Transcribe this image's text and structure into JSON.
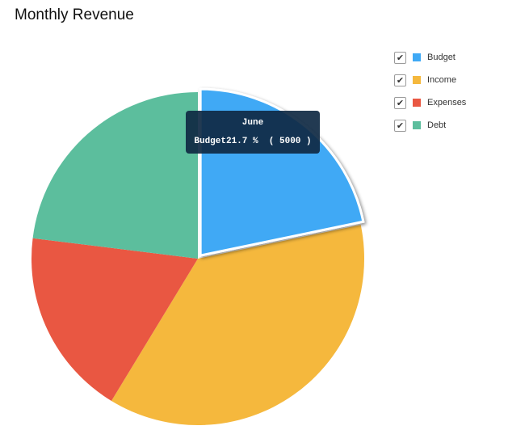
{
  "title": "Monthly Revenue",
  "chart_data": {
    "type": "pie",
    "title": "Monthly Revenue",
    "slices": [
      {
        "name": "Budget",
        "value": 5000,
        "percent": 21.7,
        "color": "#3FA9F5",
        "highlighted": true
      },
      {
        "name": "Income",
        "value": 8500,
        "percent": 37.0,
        "color": "#F5B83D"
      },
      {
        "name": "Expenses",
        "value": 4200,
        "percent": 18.3,
        "color": "#E95742"
      },
      {
        "name": "Debt",
        "value": 5300,
        "percent": 23.0,
        "color": "#5CBE9D"
      }
    ],
    "legend_position": "top-right",
    "tooltip": {
      "title": "June",
      "series": "Budget",
      "percent_text": "21.7 %",
      "value_text": "( 5000 )"
    }
  },
  "legend": {
    "items": [
      {
        "label": "Budget",
        "color": "#3FA9F5",
        "checked": true
      },
      {
        "label": "Income",
        "color": "#F5B83D",
        "checked": true
      },
      {
        "label": "Expenses",
        "color": "#E95742",
        "checked": true
      },
      {
        "label": "Debt",
        "color": "#5CBE9D",
        "checked": true
      }
    ]
  }
}
